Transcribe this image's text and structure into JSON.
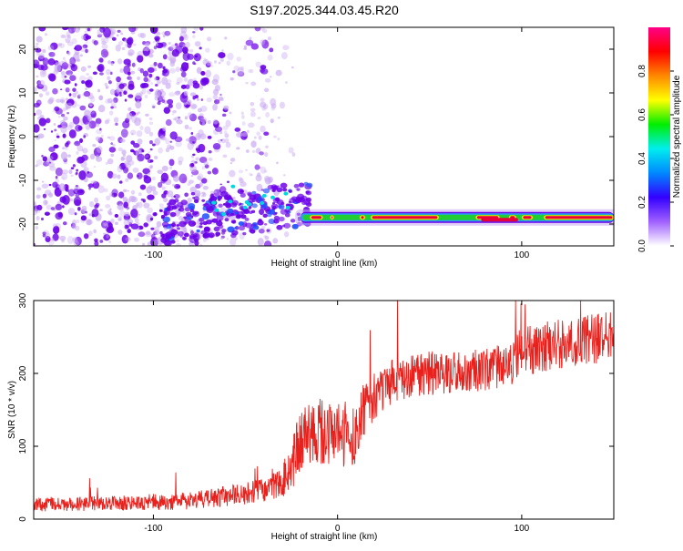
{
  "figure_title": "S197.2025.344.03.45.R20",
  "colors": {
    "snr_line": "#e8211d",
    "ridge_core": "#e8003a",
    "ridge_mid": "#22cc33",
    "ridge_outer": "#2a9cff",
    "scatter_strong": "#6a00e8",
    "scatter_weak": "#c9a8f2"
  },
  "chart_data": [
    {
      "type": "heatmap",
      "title": "S197.2025.344.03.45.R20",
      "xlabel": "Height of straight line (km)",
      "ylabel": "Frequency (Hz)",
      "xlim": [
        -165,
        150
      ],
      "ylim": [
        -25,
        25
      ],
      "x_ticks": [
        -100,
        0,
        100
      ],
      "x_tick_labels": [
        "-100",
        "0",
        "100"
      ],
      "y_ticks": [
        20,
        10,
        0,
        -10,
        -20
      ],
      "y_tick_labels": [
        "20",
        "10",
        "0",
        "-10",
        "-20"
      ],
      "colorbar": {
        "label": "Normalized spectral amplitude",
        "range": [
          0,
          1
        ],
        "ticks": [
          0.0,
          0.2,
          0.4,
          0.6,
          0.8
        ],
        "tick_labels": [
          "0.0",
          "0.2",
          "0.4",
          "0.6",
          "0.8"
        ],
        "colormap": [
          "#ffffff",
          "#a060ff",
          "#3300ff",
          "#0088ff",
          "#00eeee",
          "#00ee00",
          "#ffff00",
          "#ff8800",
          "#ff0000",
          "#ff0088"
        ]
      },
      "ridge": {
        "description": "narrow high-amplitude band",
        "x_range": [
          -20,
          150
        ],
        "frequency_hz": -18.5
      },
      "scatter_region": {
        "x_range": [
          -165,
          -40
        ],
        "frequency_range": [
          -25,
          25
        ]
      }
    },
    {
      "type": "line",
      "xlabel": "Height of straight line (km)",
      "ylabel": "SNR (10 * v/v)",
      "xlim": [
        -165,
        150
      ],
      "ylim": [
        0,
        300
      ],
      "x_ticks": [
        -100,
        0,
        100
      ],
      "x_tick_labels": [
        "-100",
        "0",
        "100"
      ],
      "y_ticks": [
        0,
        100,
        200,
        300
      ],
      "y_tick_labels": [
        "0",
        "100",
        "200",
        "300"
      ],
      "series": [
        {
          "name": "SNR",
          "trend_x": [
            -165,
            -120,
            -80,
            -50,
            -40,
            -30,
            -25,
            -18,
            -10,
            0,
            10,
            15,
            20,
            30,
            50,
            80,
            95,
            100,
            130,
            150
          ],
          "trend_y": [
            20,
            22,
            25,
            35,
            40,
            50,
            80,
            110,
            120,
            115,
            120,
            150,
            170,
            190,
            200,
            205,
            215,
            230,
            245,
            250
          ],
          "noise_amplitude": [
            10,
            10,
            12,
            15,
            16,
            20,
            40,
            45,
            50,
            45,
            45,
            40,
            35,
            30,
            30,
            30,
            30,
            35,
            35,
            35
          ]
        }
      ]
    }
  ]
}
